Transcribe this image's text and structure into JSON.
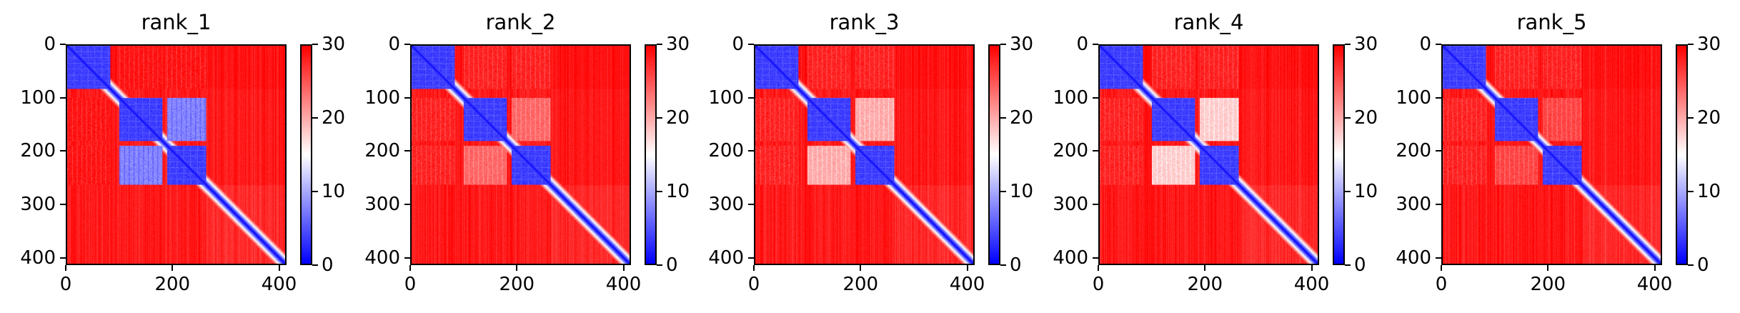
{
  "figure": {
    "colormap": {
      "name": "bwr",
      "low": "#0000ff",
      "mid": "#ffffff",
      "high": "#ff0000"
    },
    "colorbar": {
      "min": 0,
      "max": 30,
      "ticks": [
        "0",
        "10",
        "20",
        "30"
      ]
    },
    "x_ticks": [
      "0",
      "200",
      "400"
    ],
    "y_ticks": [
      "0",
      "100",
      "200",
      "300",
      "400"
    ]
  },
  "chart_data": [
    {
      "type": "heatmap",
      "title": "rank_1",
      "xlabel": "",
      "ylabel": "",
      "xlim": [
        0,
        414
      ],
      "ylim": [
        414,
        0
      ],
      "zlim": [
        0,
        30
      ],
      "x_ticks": [
        0,
        200,
        400
      ],
      "y_ticks": [
        0,
        100,
        200,
        300,
        400
      ],
      "colorbar_ticks": [
        0,
        10,
        20,
        30
      ],
      "domains": [
        [
          0,
          82
        ],
        [
          99,
          181
        ],
        [
          190,
          264
        ]
      ],
      "inter_domain_pae": {
        "d1-d2": 29,
        "d1-d3": 29,
        "d2-d3": 8,
        "d1-rest": 29,
        "d2-rest": 28,
        "d3-rest": 28
      },
      "intra_domain_pae": 2,
      "diagonal_pae": 0,
      "disordered_region": [
        264,
        414
      ]
    },
    {
      "type": "heatmap",
      "title": "rank_2",
      "xlabel": "",
      "ylabel": "",
      "xlim": [
        0,
        414
      ],
      "ylim": [
        414,
        0
      ],
      "zlim": [
        0,
        30
      ],
      "x_ticks": [
        0,
        200,
        400
      ],
      "y_ticks": [
        0,
        100,
        200,
        300,
        400
      ],
      "colorbar_ticks": [
        0,
        10,
        20,
        30
      ],
      "domains": [
        [
          0,
          82
        ],
        [
          99,
          181
        ],
        [
          190,
          264
        ]
      ],
      "inter_domain_pae": {
        "d1-d2": 28,
        "d1-d3": 28,
        "d2-d3": 24,
        "d1-rest": 29,
        "d2-rest": 28,
        "d3-rest": 28
      },
      "intra_domain_pae": 2,
      "diagonal_pae": 0,
      "disordered_region": [
        264,
        414
      ]
    },
    {
      "type": "heatmap",
      "title": "rank_3",
      "xlabel": "",
      "ylabel": "",
      "xlim": [
        0,
        414
      ],
      "ylim": [
        414,
        0
      ],
      "zlim": [
        0,
        30
      ],
      "x_ticks": [
        0,
        200,
        400
      ],
      "y_ticks": [
        0,
        100,
        200,
        300,
        400
      ],
      "colorbar_ticks": [
        0,
        10,
        20,
        30
      ],
      "domains": [
        [
          0,
          82
        ],
        [
          99,
          181
        ],
        [
          190,
          264
        ]
      ],
      "inter_domain_pae": {
        "d1-d2": 28,
        "d1-d3": 28,
        "d2-d3": 20,
        "d1-rest": 29,
        "d2-rest": 28,
        "d3-rest": 28
      },
      "intra_domain_pae": 2,
      "diagonal_pae": 0,
      "disordered_region": [
        264,
        414
      ]
    },
    {
      "type": "heatmap",
      "title": "rank_4",
      "xlabel": "",
      "ylabel": "",
      "xlim": [
        0,
        414
      ],
      "ylim": [
        414,
        0
      ],
      "zlim": [
        0,
        30
      ],
      "x_ticks": [
        0,
        200,
        400
      ],
      "y_ticks": [
        0,
        100,
        200,
        300,
        400
      ],
      "colorbar_ticks": [
        0,
        10,
        20,
        30
      ],
      "domains": [
        [
          0,
          82
        ],
        [
          99,
          181
        ],
        [
          190,
          264
        ]
      ],
      "inter_domain_pae": {
        "d1-d2": 28,
        "d1-d3": 28,
        "d2-d3": 18,
        "d1-rest": 29,
        "d2-rest": 28,
        "d3-rest": 28
      },
      "intra_domain_pae": 2,
      "diagonal_pae": 0,
      "disordered_region": [
        264,
        414
      ]
    },
    {
      "type": "heatmap",
      "title": "rank_5",
      "xlabel": "",
      "ylabel": "",
      "xlim": [
        0,
        414
      ],
      "ylim": [
        414,
        0
      ],
      "zlim": [
        0,
        30
      ],
      "x_ticks": [
        0,
        200,
        400
      ],
      "y_ticks": [
        0,
        100,
        200,
        300,
        400
      ],
      "colorbar_ticks": [
        0,
        10,
        20,
        30
      ],
      "domains": [
        [
          0,
          82
        ],
        [
          99,
          181
        ],
        [
          190,
          264
        ]
      ],
      "inter_domain_pae": {
        "d1-d2": 28,
        "d1-d3": 28,
        "d2-d3": 26,
        "d1-rest": 29,
        "d2-rest": 28,
        "d3-rest": 28
      },
      "intra_domain_pae": 2,
      "diagonal_pae": 0,
      "disordered_region": [
        264,
        414
      ]
    }
  ]
}
